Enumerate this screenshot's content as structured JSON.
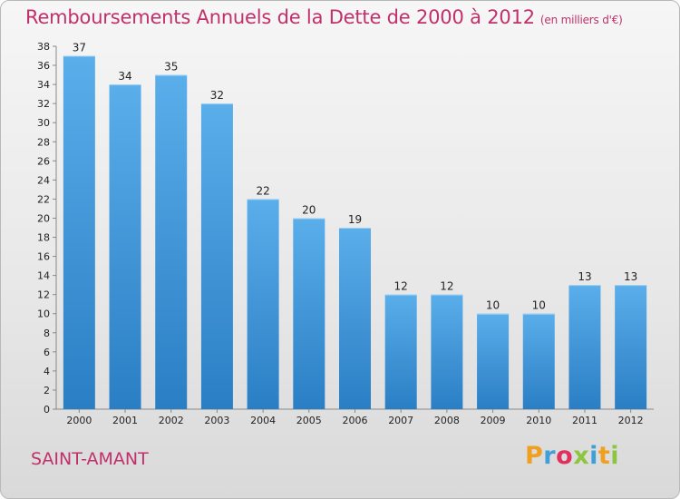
{
  "chart_data": {
    "type": "bar",
    "title": "Remboursements Annuels de la Dette de 2000 à 2012",
    "unit": "(en milliers d'€)",
    "categories": [
      "2000",
      "2001",
      "2002",
      "2003",
      "2004",
      "2005",
      "2006",
      "2007",
      "2008",
      "2009",
      "2010",
      "2011",
      "2012"
    ],
    "values": [
      37,
      34,
      35,
      32,
      22,
      20,
      19,
      12,
      12,
      10,
      10,
      13,
      13
    ],
    "ylim": [
      0,
      38
    ],
    "yticks": [
      0,
      2,
      4,
      6,
      8,
      10,
      12,
      14,
      16,
      18,
      20,
      22,
      24,
      26,
      28,
      30,
      32,
      34,
      36,
      38
    ],
    "grid": false,
    "bar_color_top": "#5aaeea",
    "bar_color_bottom": "#2a7ec4"
  },
  "commune": "SAINT-AMANT",
  "logo": {
    "text": "Proxiti",
    "letters": [
      {
        "ch": "P",
        "color": "#f0a020"
      },
      {
        "ch": "r",
        "color": "#3f9fd8"
      },
      {
        "ch": "o",
        "color": "#e03060"
      },
      {
        "ch": "x",
        "color": "#8bc63e"
      },
      {
        "ch": "i",
        "color": "#3f9fd8"
      },
      {
        "ch": "t",
        "color": "#f0a020"
      },
      {
        "ch": "i",
        "color": "#8bc63e"
      }
    ]
  }
}
